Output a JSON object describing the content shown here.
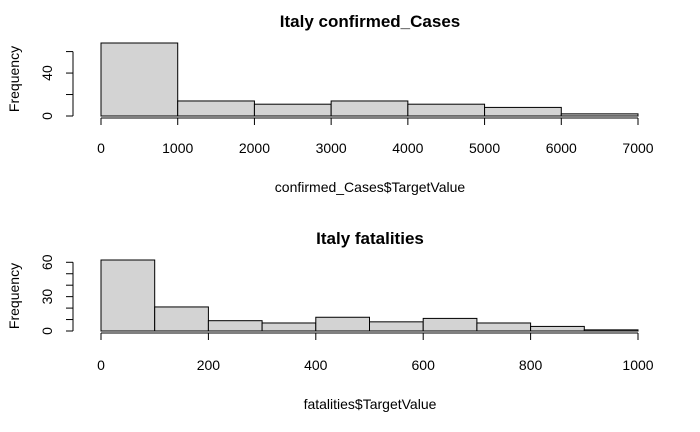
{
  "colors": {
    "bar_fill": "#d3d3d3",
    "bar_stroke": "#000000",
    "background": "#ffffff"
  },
  "chart_data": [
    {
      "type": "bar",
      "subtype": "histogram",
      "title": "Italy confirmed_Cases",
      "xlabel": "confirmed_Cases$TargetValue",
      "ylabel": "Frequency",
      "bins": [
        {
          "start": 0,
          "end": 1000,
          "count": 68
        },
        {
          "start": 1000,
          "end": 2000,
          "count": 14
        },
        {
          "start": 2000,
          "end": 3000,
          "count": 11
        },
        {
          "start": 3000,
          "end": 4000,
          "count": 14
        },
        {
          "start": 4000,
          "end": 5000,
          "count": 11
        },
        {
          "start": 5000,
          "end": 6000,
          "count": 8
        },
        {
          "start": 6000,
          "end": 7000,
          "count": 2
        }
      ],
      "xlim": [
        0,
        7000
      ],
      "ylim": [
        0,
        68
      ],
      "xticks": [
        0,
        1000,
        2000,
        3000,
        4000,
        5000,
        6000,
        7000
      ],
      "xtick_labels": [
        "0",
        "1000",
        "2000",
        "3000",
        "4000",
        "5000",
        "6000",
        "7000"
      ],
      "yticks": [
        0,
        20,
        40,
        60
      ],
      "ytick_labels": [
        "0",
        "",
        "40",
        ""
      ],
      "grid": false
    },
    {
      "type": "bar",
      "subtype": "histogram",
      "title": "Italy fatalities",
      "xlabel": "fatalities$TargetValue",
      "ylabel": "Frequency",
      "bins": [
        {
          "start": 0,
          "end": 100,
          "count": 62
        },
        {
          "start": 100,
          "end": 200,
          "count": 21
        },
        {
          "start": 200,
          "end": 300,
          "count": 9
        },
        {
          "start": 300,
          "end": 400,
          "count": 7
        },
        {
          "start": 400,
          "end": 500,
          "count": 12
        },
        {
          "start": 500,
          "end": 600,
          "count": 8
        },
        {
          "start": 600,
          "end": 700,
          "count": 11
        },
        {
          "start": 700,
          "end": 800,
          "count": 7
        },
        {
          "start": 800,
          "end": 900,
          "count": 4
        },
        {
          "start": 900,
          "end": 1000,
          "count": 1
        }
      ],
      "xlim": [
        0,
        1000
      ],
      "ylim": [
        0,
        62
      ],
      "xticks": [
        0,
        200,
        400,
        600,
        800,
        1000
      ],
      "xtick_labels": [
        "0",
        "200",
        "400",
        "600",
        "800",
        "1000"
      ],
      "yticks": [
        0,
        10,
        20,
        30,
        40,
        50,
        60
      ],
      "ytick_labels": [
        "0",
        "",
        "",
        "30",
        "",
        "",
        "60"
      ],
      "grid": false
    }
  ]
}
